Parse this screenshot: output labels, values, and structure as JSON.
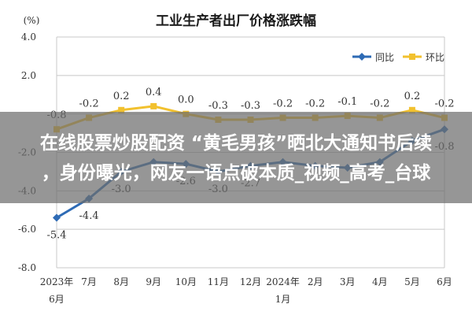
{
  "chart_data": {
    "type": "line",
    "title": "工业生产者出厂价格涨跌幅",
    "ylabel": "(%)",
    "ylim": [
      -8.0,
      4.0
    ],
    "yticks": [
      "4.0",
      "2.0",
      "-2.0",
      "-4.0",
      "-6.0",
      "-8.0"
    ],
    "categories": [
      "2023年6月",
      "7月",
      "8月",
      "9月",
      "10月",
      "11月",
      "12月",
      "2024年1月",
      "2月",
      "3月",
      "4月",
      "5月",
      "6月"
    ],
    "xtick_top": [
      "2023年",
      "7月",
      "8月",
      "9月",
      "10月",
      "11月",
      "12月",
      "2024年",
      "2月",
      "3月",
      "4月",
      "5月",
      "6月"
    ],
    "xtick_bottom": [
      "6月",
      "",
      "",
      "",
      "",
      "",
      "",
      "1月",
      "",
      "",
      "",
      "",
      ""
    ],
    "legend_position": "top-right",
    "series": [
      {
        "name": "同比",
        "color": "#2e6bb5",
        "values": [
          -5.4,
          -4.4,
          -3.0,
          -2.5,
          -2.6,
          -3.0,
          -2.7,
          -2.5,
          -2.7,
          -2.8,
          -2.5,
          -1.4,
          -0.8
        ],
        "labels": [
          "-5.4",
          "-4.4",
          "-3.0",
          "",
          "-2.6",
          "-3.0",
          "-2.7",
          "",
          "",
          "",
          "",
          "",
          "-0.8"
        ]
      },
      {
        "name": "环比",
        "color": "#f2c12e",
        "values": [
          -0.8,
          -0.2,
          0.2,
          0.4,
          0.0,
          -0.3,
          -0.3,
          -0.2,
          -0.2,
          -0.1,
          -0.2,
          0.2,
          -0.2
        ],
        "labels": [
          "-0.8",
          "-0.2",
          "0.2",
          "0.4",
          "0.0",
          "-0.3",
          "-0.3",
          "-0.2",
          "-0.2",
          "-0.1",
          "-0.2",
          "0.2",
          "-0.2"
        ]
      }
    ]
  },
  "overlay": {
    "line1": "在线股票炒股配资 “黄毛男孩”晒北大通知书后续",
    "line2": "，身份曝光，网友一语点破本质_视频_高考_台球"
  }
}
